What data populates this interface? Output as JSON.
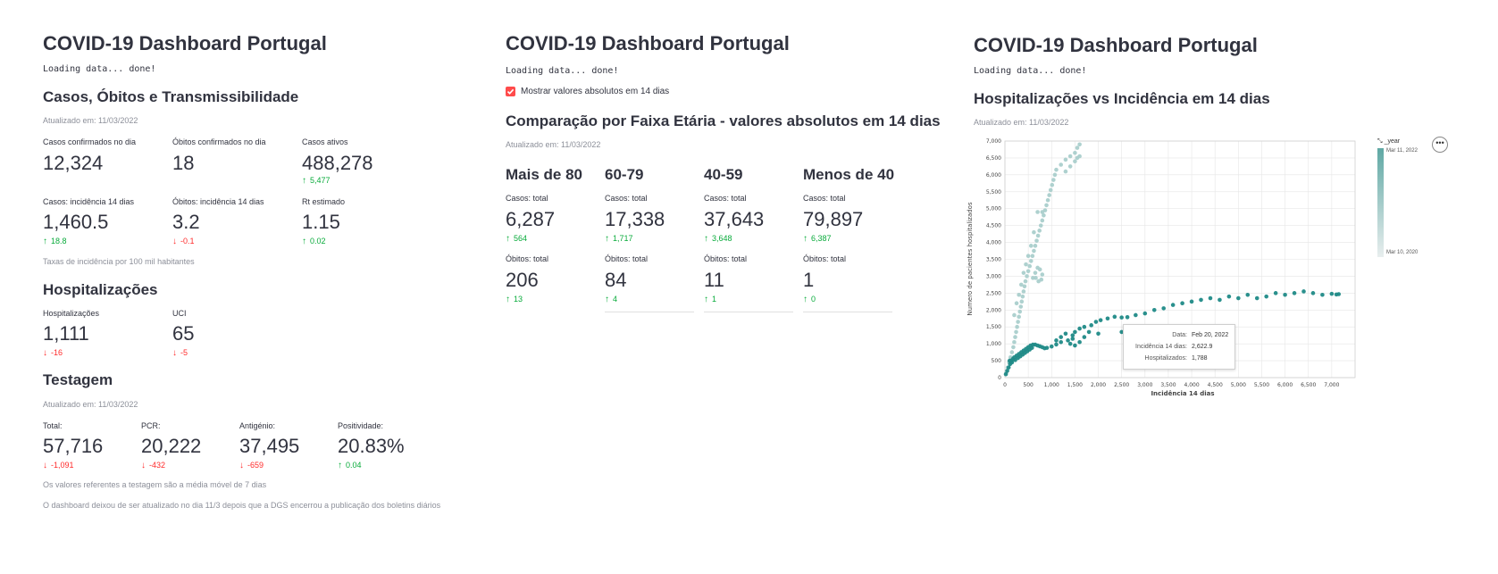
{
  "panel1": {
    "title": "COVID-19 Dashboard Portugal",
    "loading": "Loading data... done!",
    "section1_title": "Casos, Óbitos e Transmissibilidade",
    "updated1": "Atualizado em: 11/03/2022",
    "metrics_row1": [
      {
        "label": "Casos confirmados no dia",
        "value": "12,324",
        "delta": ""
      },
      {
        "label": "Óbitos confirmados no dia",
        "value": "18",
        "delta": ""
      },
      {
        "label": "Casos ativos",
        "value": "488,278",
        "delta": "5,477",
        "direction": "up"
      }
    ],
    "metrics_row2": [
      {
        "label": "Casos: incidência 14 dias",
        "value": "1,460.5",
        "delta": "18.8",
        "direction": "up"
      },
      {
        "label": "Óbitos: incidência 14 dias",
        "value": "3.2",
        "delta": "-0.1",
        "direction": "down"
      },
      {
        "label": "Rt estimado",
        "value": "1.15",
        "delta": "0.02",
        "direction": "up"
      }
    ],
    "incidence_note": "Taxas de incidência por 100 mil habitantes",
    "section2_title": "Hospitalizações",
    "hosp_metrics": [
      {
        "label": "Hospitalizações",
        "value": "1,111",
        "delta": "-16",
        "direction": "down"
      },
      {
        "label": "UCI",
        "value": "65",
        "delta": "-5",
        "direction": "down"
      }
    ],
    "section3_title": "Testagem",
    "updated3": "Atualizado em: 11/03/2022",
    "test_metrics": [
      {
        "label": "Total:",
        "value": "57,716",
        "delta": "-1,091",
        "direction": "down"
      },
      {
        "label": "PCR:",
        "value": "20,222",
        "delta": "-432",
        "direction": "down"
      },
      {
        "label": "Antigénio:",
        "value": "37,495",
        "delta": "-659",
        "direction": "down"
      },
      {
        "label": "Positividade:",
        "value": "20.83%",
        "delta": "0.04",
        "direction": "up"
      }
    ],
    "test_note": "Os valores referentes a testagem são a média móvel de 7 dias",
    "footer_note": "O dashboard deixou de ser atualizado no dia 11/3 depois que a DGS encerrou a publicação dos boletins diários"
  },
  "panel2": {
    "title": "COVID-19 Dashboard Portugal",
    "loading": "Loading data... done!",
    "checkbox_label": "Mostrar valores absolutos em 14 dias",
    "checkbox_checked": true,
    "section_title": "Comparação por Faixa Etária - valores absolutos em 14 dias",
    "updated": "Atualizado em: 11/03/2022",
    "groups": [
      {
        "name": "Mais de 80",
        "cases_label": "Casos: total",
        "cases": "6,287",
        "cases_delta": "564",
        "deaths_label": "Óbitos: total",
        "deaths": "206",
        "deaths_delta": "13"
      },
      {
        "name": "60-79",
        "cases_label": "Casos: total",
        "cases": "17,338",
        "cases_delta": "1,717",
        "deaths_label": "Óbitos: total",
        "deaths": "84",
        "deaths_delta": "4"
      },
      {
        "name": "40-59",
        "cases_label": "Casos: total",
        "cases": "37,643",
        "cases_delta": "3,648",
        "deaths_label": "Óbitos: total",
        "deaths": "11",
        "deaths_delta": "1"
      },
      {
        "name": "Menos de 40",
        "cases_label": "Casos: total",
        "cases": "79,897",
        "cases_delta": "6,387",
        "deaths_label": "Óbitos: total",
        "deaths": "1",
        "deaths_delta": "0"
      }
    ]
  },
  "panel3": {
    "title": "COVID-19 Dashboard Portugal",
    "loading": "Loading data... done!",
    "section_title": "Hospitalizações vs Incidência em 14 dias",
    "updated": "Atualizado em: 11/03/2022",
    "legend_title": "_year",
    "legend_top": "Mar 11, 2022",
    "legend_bottom": "Mar 10, 2020",
    "menu_icon": "ellipsis-icon",
    "tooltip": {
      "rows": [
        {
          "k": "Data:",
          "v": "Feb 20, 2022"
        },
        {
          "k": "Incidência 14 dias:",
          "v": "2,622.9"
        },
        {
          "k": "Hospitalizados:",
          "v": "1,788"
        }
      ]
    }
  },
  "colors": {
    "accent": "#ff4b4b",
    "up": "#09ab3b",
    "down": "#ff2b2b",
    "scatter_dark": "#1f8a87",
    "scatter_light": "#c9dedd"
  },
  "chart_data": {
    "type": "scatter",
    "title": "",
    "xlabel": "Incidência 14 dias",
    "ylabel": "Numero de pacientes hospitalizados",
    "xlim": [
      0,
      7500
    ],
    "ylim": [
      0,
      7000
    ],
    "xticks": [
      "0",
      "500",
      "1,000",
      "1,500",
      "2,000",
      "2,500",
      "3,000",
      "3,500",
      "4,000",
      "4,500",
      "5,000",
      "5,500",
      "6,000",
      "6,500",
      "7,000"
    ],
    "yticks": [
      "0",
      "500",
      "1,000",
      "1,500",
      "2,000",
      "2,500",
      "3,000",
      "3,500",
      "4,000",
      "4,500",
      "5,000",
      "5,500",
      "6,000",
      "6,500",
      "7,000"
    ],
    "grid": true,
    "legend": "top-right",
    "series": [
      {
        "points": [
          [
            30,
            150
          ],
          [
            60,
            300
          ],
          [
            90,
            450
          ],
          [
            120,
            600
          ],
          [
            150,
            750
          ],
          [
            180,
            900
          ],
          [
            200,
            1050
          ],
          [
            220,
            1200
          ],
          [
            240,
            1350
          ],
          [
            260,
            1500
          ],
          [
            280,
            1650
          ],
          [
            300,
            1800
          ],
          [
            320,
            1950
          ],
          [
            340,
            2100
          ],
          [
            360,
            2250
          ],
          [
            380,
            2400
          ],
          [
            400,
            2550
          ],
          [
            420,
            2700
          ],
          [
            440,
            2850
          ],
          [
            470,
            3000
          ],
          [
            500,
            3150
          ],
          [
            530,
            3300
          ],
          [
            560,
            3450
          ],
          [
            590,
            3600
          ],
          [
            620,
            3750
          ],
          [
            650,
            3900
          ],
          [
            680,
            4050
          ],
          [
            710,
            4200
          ],
          [
            740,
            4350
          ],
          [
            770,
            4500
          ],
          [
            800,
            4650
          ],
          [
            830,
            4800
          ],
          [
            860,
            4950
          ],
          [
            890,
            5100
          ],
          [
            920,
            5250
          ],
          [
            950,
            5400
          ],
          [
            980,
            5550
          ],
          [
            1010,
            5700
          ],
          [
            1040,
            5850
          ],
          [
            1070,
            6000
          ],
          [
            1100,
            6150
          ],
          [
            1200,
            6300
          ],
          [
            1300,
            6450
          ],
          [
            1400,
            6550
          ],
          [
            1500,
            6650
          ],
          [
            1550,
            6800
          ],
          [
            1600,
            6900
          ],
          [
            600,
            2950
          ],
          [
            650,
            3100
          ],
          [
            700,
            3250
          ],
          [
            750,
            3200
          ],
          [
            800,
            3050
          ],
          [
            780,
            2900
          ],
          [
            720,
            2850
          ],
          [
            660,
            2950
          ],
          [
            200,
            1850
          ],
          [
            250,
            2200
          ],
          [
            300,
            2450
          ],
          [
            350,
            2750
          ],
          [
            400,
            3100
          ],
          [
            450,
            3350
          ],
          [
            500,
            3600
          ],
          [
            560,
            3900
          ],
          [
            620,
            4300
          ],
          [
            700,
            4900
          ],
          [
            800,
            4900
          ],
          [
            1300,
            6100
          ],
          [
            1400,
            6250
          ],
          [
            1500,
            6400
          ],
          [
            1550,
            6500
          ],
          [
            1600,
            6550
          ]
        ],
        "color": "#aacfcc"
      },
      {
        "points": [
          [
            20,
            100
          ],
          [
            50,
            200
          ],
          [
            80,
            300
          ],
          [
            110,
            400
          ],
          [
            140,
            500
          ],
          [
            170,
            550
          ],
          [
            200,
            600
          ],
          [
            250,
            650
          ],
          [
            300,
            700
          ],
          [
            350,
            750
          ],
          [
            400,
            800
          ],
          [
            450,
            850
          ],
          [
            500,
            900
          ],
          [
            550,
            950
          ],
          [
            600,
            975
          ],
          [
            650,
            975
          ],
          [
            700,
            950
          ],
          [
            750,
            925
          ],
          [
            800,
            900
          ],
          [
            850,
            870
          ],
          [
            100,
            500
          ],
          [
            150,
            450
          ],
          [
            220,
            520
          ],
          [
            280,
            580
          ],
          [
            330,
            630
          ],
          [
            380,
            680
          ],
          [
            430,
            730
          ],
          [
            480,
            780
          ],
          [
            530,
            830
          ],
          [
            580,
            880
          ],
          [
            900,
            880
          ],
          [
            1000,
            920
          ],
          [
            1100,
            980
          ],
          [
            1200,
            1050
          ],
          [
            1350,
            1100
          ],
          [
            1450,
            1150
          ],
          [
            1450,
            1250
          ],
          [
            1500,
            1350
          ],
          [
            1600,
            1450
          ],
          [
            1700,
            1500
          ],
          [
            1850,
            1550
          ],
          [
            1950,
            1650
          ],
          [
            2050,
            1700
          ],
          [
            2200,
            1750
          ],
          [
            2350,
            1800
          ],
          [
            2500,
            1780
          ],
          [
            2622.9,
            1788
          ],
          [
            2800,
            1850
          ],
          [
            3000,
            1900
          ],
          [
            3200,
            2000
          ],
          [
            3400,
            2050
          ],
          [
            3600,
            2150
          ],
          [
            3800,
            2200
          ],
          [
            4000,
            2250
          ],
          [
            4200,
            2300
          ],
          [
            4400,
            2350
          ],
          [
            4600,
            2300
          ],
          [
            4800,
            2400
          ],
          [
            5000,
            2350
          ],
          [
            5200,
            2450
          ],
          [
            5400,
            2350
          ],
          [
            5600,
            2400
          ],
          [
            5800,
            2500
          ],
          [
            6000,
            2450
          ],
          [
            6200,
            2500
          ],
          [
            6400,
            2550
          ],
          [
            6600,
            2500
          ],
          [
            6800,
            2450
          ],
          [
            7000,
            2480
          ],
          [
            7100,
            2460
          ],
          [
            7150,
            2470
          ],
          [
            2000,
            1300
          ],
          [
            2500,
            1350
          ],
          [
            3000,
            1400
          ],
          [
            3500,
            1450
          ],
          [
            4000,
            1500
          ],
          [
            1100,
            1100
          ],
          [
            1200,
            1200
          ],
          [
            1300,
            1300
          ],
          [
            1400,
            1000
          ],
          [
            1500,
            950
          ],
          [
            1600,
            1050
          ],
          [
            1700,
            1200
          ],
          [
            1800,
            1350
          ]
        ],
        "color": "#1f8a87"
      }
    ]
  }
}
